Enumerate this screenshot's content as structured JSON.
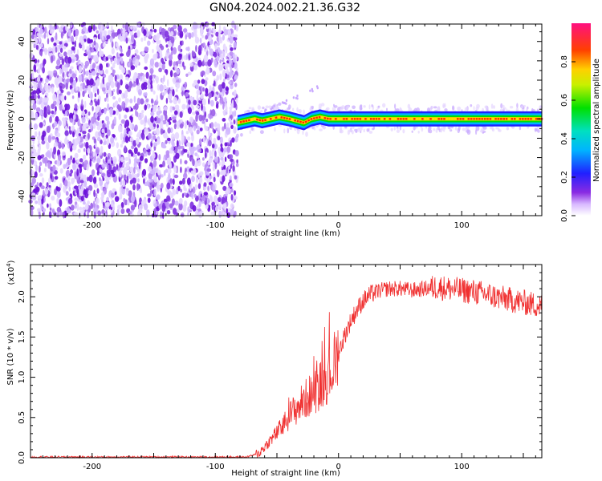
{
  "title": "GN04.2024.002.21.36.G32",
  "chart_data": [
    {
      "type": "heatmap",
      "xlabel": "Height of straight line (km)",
      "ylabel": "Frequency (Hz)",
      "xlim": [
        -250,
        165
      ],
      "ylim": [
        -50,
        49
      ],
      "x_ticks": [
        -200,
        -100,
        0,
        100
      ],
      "y_ticks": [
        -40,
        -20,
        0,
        20,
        40
      ],
      "colorbar": {
        "label": "Normalized spectral amplitude",
        "range": [
          0,
          1
        ],
        "ticks": [
          "0.0",
          "0.2",
          "0.4",
          "0.6",
          "0.8"
        ],
        "colormap": "rainbow"
      },
      "regions": [
        {
          "name": "noise",
          "x_range": [
            -250,
            -82
          ],
          "freq_range": [
            -50,
            49
          ],
          "amplitude": "low, scattered"
        },
        {
          "name": "carrier",
          "x_range": [
            -82,
            165
          ],
          "freq_center": 0,
          "freq_halfwidth": 3,
          "amplitude": 1.0
        }
      ],
      "carrier_track": {
        "x": [
          -82,
          -75,
          -68,
          -62,
          -55,
          -48,
          -40,
          -34,
          -28,
          -22,
          -15,
          -8,
          0,
          20,
          60,
          100,
          165
        ],
        "freq": [
          -2,
          -1,
          0,
          -1,
          0,
          1,
          0,
          -1,
          -2,
          0,
          1,
          0,
          0,
          0,
          0,
          0,
          0
        ]
      },
      "grid": false
    },
    {
      "type": "line",
      "xlabel": "Height of straight line (km)",
      "ylabel": "SNR (10 * v/v)",
      "y_scale_label": "(x10",
      "y_scale_exp": "4",
      "y_scale_close": ")",
      "xlim": [
        -250,
        165
      ],
      "ylim": [
        0,
        2.4
      ],
      "x_ticks": [
        -200,
        -100,
        0,
        100
      ],
      "y_ticks": [
        "0.0",
        "0.5",
        "1.0",
        "1.5",
        "2.0"
      ],
      "series": [
        {
          "color": "#f03030",
          "x": [
            -250,
            -200,
            -150,
            -100,
            -75,
            -65,
            -55,
            -45,
            -40,
            -35,
            -30,
            -25,
            -20,
            -15,
            -10,
            -5,
            0,
            5,
            10,
            15,
            20,
            25,
            30,
            40,
            50,
            60,
            70,
            80,
            90,
            100,
            110,
            120,
            130,
            140,
            150,
            160,
            165
          ],
          "y": [
            0.01,
            0.01,
            0.01,
            0.01,
            0.01,
            0.05,
            0.22,
            0.4,
            0.52,
            0.6,
            0.68,
            0.75,
            0.82,
            0.9,
            1.0,
            1.12,
            1.3,
            1.52,
            1.7,
            1.84,
            1.95,
            2.02,
            2.06,
            2.1,
            2.1,
            2.08,
            2.1,
            2.12,
            2.1,
            2.08,
            2.06,
            2.03,
            1.99,
            1.96,
            1.93,
            1.9,
            1.88
          ]
        }
      ],
      "grid": false
    }
  ]
}
